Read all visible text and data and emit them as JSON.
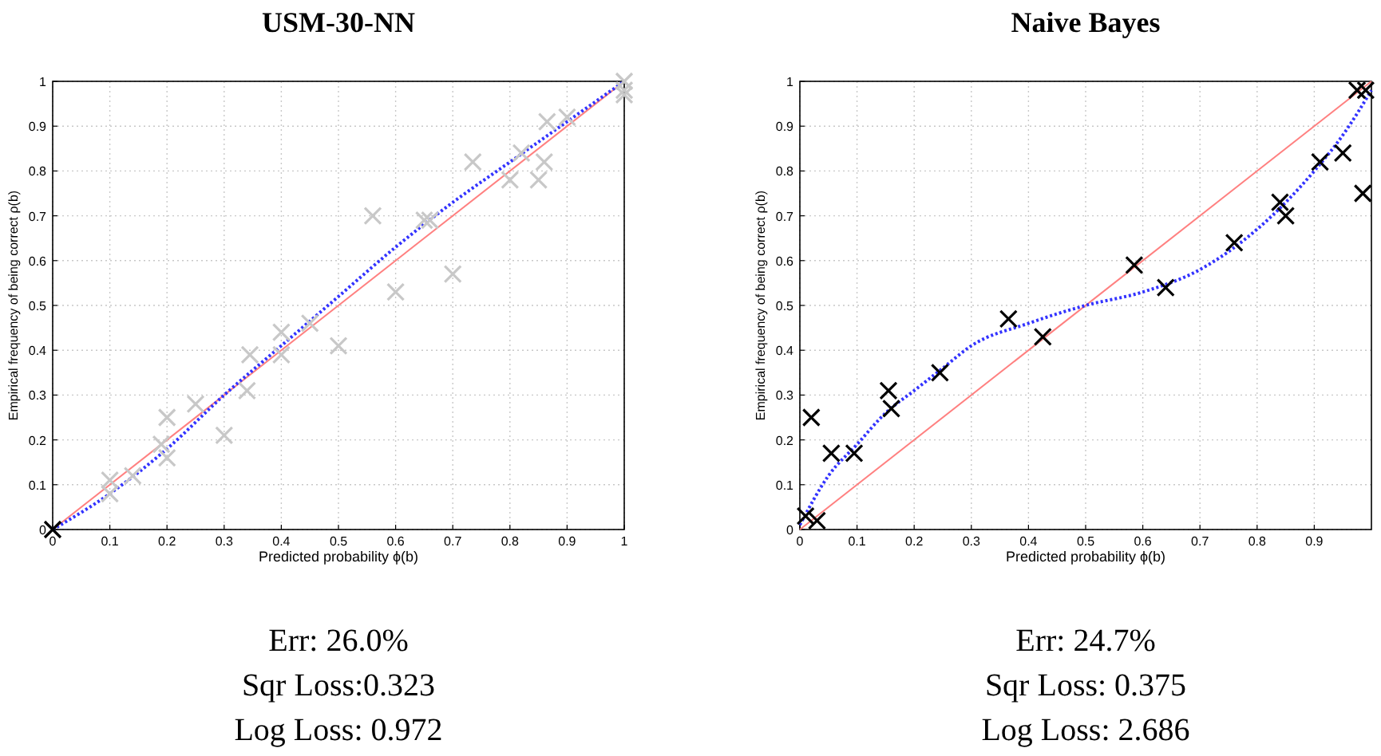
{
  "chart_data": [
    {
      "type": "scatter",
      "title": "USM-30-NN",
      "xlabel": "Predicted probability ϕ(b)",
      "ylabel": "Empirical frequency of being correct  ρ(b)",
      "xlim": [
        0,
        1
      ],
      "ylim": [
        0,
        1
      ],
      "xticks": [
        0,
        0.1,
        0.2,
        0.3,
        0.4,
        0.5,
        0.6,
        0.7,
        0.8,
        0.9,
        1
      ],
      "yticks": [
        0,
        0.1,
        0.2,
        0.3,
        0.4,
        0.5,
        0.6,
        0.7,
        0.8,
        0.9,
        1
      ],
      "grid": true,
      "series": [
        {
          "type": "line",
          "color": "#ff8080",
          "line_style": "solid",
          "marker": "none",
          "x": [
            0,
            1
          ],
          "values": [
            0,
            1
          ]
        },
        {
          "type": "line",
          "color": "#3333ff",
          "line_style": "dotted",
          "marker": "none",
          "x": [
            0,
            0.1,
            0.2,
            0.3,
            0.4,
            0.5,
            0.6,
            0.7,
            0.8,
            0.9,
            1
          ],
          "values": [
            0,
            0.08,
            0.18,
            0.3,
            0.41,
            0.52,
            0.63,
            0.73,
            0.82,
            0.91,
            1
          ]
        },
        {
          "color": "#c8c8c8",
          "marker": "cross",
          "x": [
            0.1,
            0.1,
            0.14,
            0.19,
            0.2,
            0.2,
            0.25,
            0.3,
            0.34,
            0.345,
            0.4,
            0.4,
            0.45,
            0.5,
            0.56,
            0.6,
            0.65,
            0.66,
            0.7,
            0.735,
            0.8,
            0.82,
            0.85,
            0.86,
            0.865,
            0.9,
            1,
            1,
            1
          ],
          "values": [
            0.11,
            0.08,
            0.12,
            0.19,
            0.25,
            0.16,
            0.28,
            0.21,
            0.31,
            0.39,
            0.44,
            0.39,
            0.46,
            0.41,
            0.7,
            0.53,
            0.69,
            0.69,
            0.57,
            0.82,
            0.78,
            0.84,
            0.78,
            0.82,
            0.91,
            0.92,
            1,
            0.98,
            0.97
          ]
        },
        {
          "color": "#000000",
          "marker": "cross",
          "x": [
            0
          ],
          "values": [
            0
          ]
        }
      ],
      "annotations": [
        "Err: 26.0%",
        "Sqr Loss:0.323",
        "Log Loss: 0.972"
      ]
    },
    {
      "type": "scatter",
      "title": "Naive Bayes",
      "xlabel": "Predicted probability ϕ(b)",
      "ylabel": "Empirical frequency of being correct  ρ(b)",
      "xlim": [
        0,
        1
      ],
      "ylim": [
        0,
        1
      ],
      "xticks": [
        0,
        0.1,
        0.2,
        0.3,
        0.4,
        0.5,
        0.6,
        0.7,
        0.8,
        0.9
      ],
      "yticks": [
        0,
        0.1,
        0.2,
        0.3,
        0.4,
        0.5,
        0.6,
        0.7,
        0.8,
        0.9,
        1
      ],
      "grid": true,
      "series": [
        {
          "type": "line",
          "color": "#ff8080",
          "line_style": "solid",
          "marker": "none",
          "x": [
            0,
            1
          ],
          "values": [
            0,
            1
          ]
        },
        {
          "type": "line",
          "color": "#3333ff",
          "line_style": "dotted",
          "marker": "none",
          "x": [
            0,
            0.05,
            0.1,
            0.15,
            0.2,
            0.25,
            0.3,
            0.4,
            0.5,
            0.6,
            0.7,
            0.8,
            0.9,
            0.95,
            1
          ],
          "values": [
            0.01,
            0.12,
            0.19,
            0.26,
            0.31,
            0.36,
            0.41,
            0.46,
            0.5,
            0.53,
            0.58,
            0.67,
            0.8,
            0.88,
            0.98
          ]
        },
        {
          "color": "#000000",
          "marker": "cross",
          "x": [
            0.01,
            0.02,
            0.03,
            0.055,
            0.095,
            0.155,
            0.16,
            0.245,
            0.365,
            0.425,
            0.585,
            0.64,
            0.76,
            0.84,
            0.85,
            0.91,
            0.95,
            0.985,
            0.975,
            0.99
          ],
          "values": [
            0.03,
            0.25,
            0.02,
            0.17,
            0.17,
            0.31,
            0.27,
            0.35,
            0.47,
            0.43,
            0.59,
            0.54,
            0.64,
            0.73,
            0.7,
            0.82,
            0.84,
            0.75,
            0.98,
            0.98
          ]
        }
      ],
      "annotations": [
        "Err: 24.7%",
        "Sqr Loss: 0.375",
        "Log Loss: 2.686"
      ]
    }
  ]
}
